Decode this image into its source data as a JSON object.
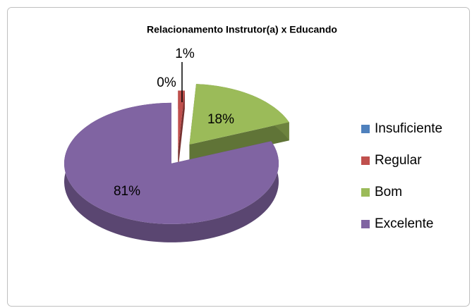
{
  "chart_data": {
    "type": "pie3d",
    "title": "Relacionamento Instrutor(a) x Educando",
    "categories": [
      "Insuficiente",
      "Regular",
      "Bom",
      "Excelente"
    ],
    "values": [
      0,
      1,
      18,
      81
    ],
    "value_labels": [
      "0%",
      "1%",
      "18%",
      "81%"
    ],
    "colors": [
      "#4f81bd",
      "#c0504d",
      "#9bbb59",
      "#8064a2"
    ],
    "legend": "right"
  }
}
